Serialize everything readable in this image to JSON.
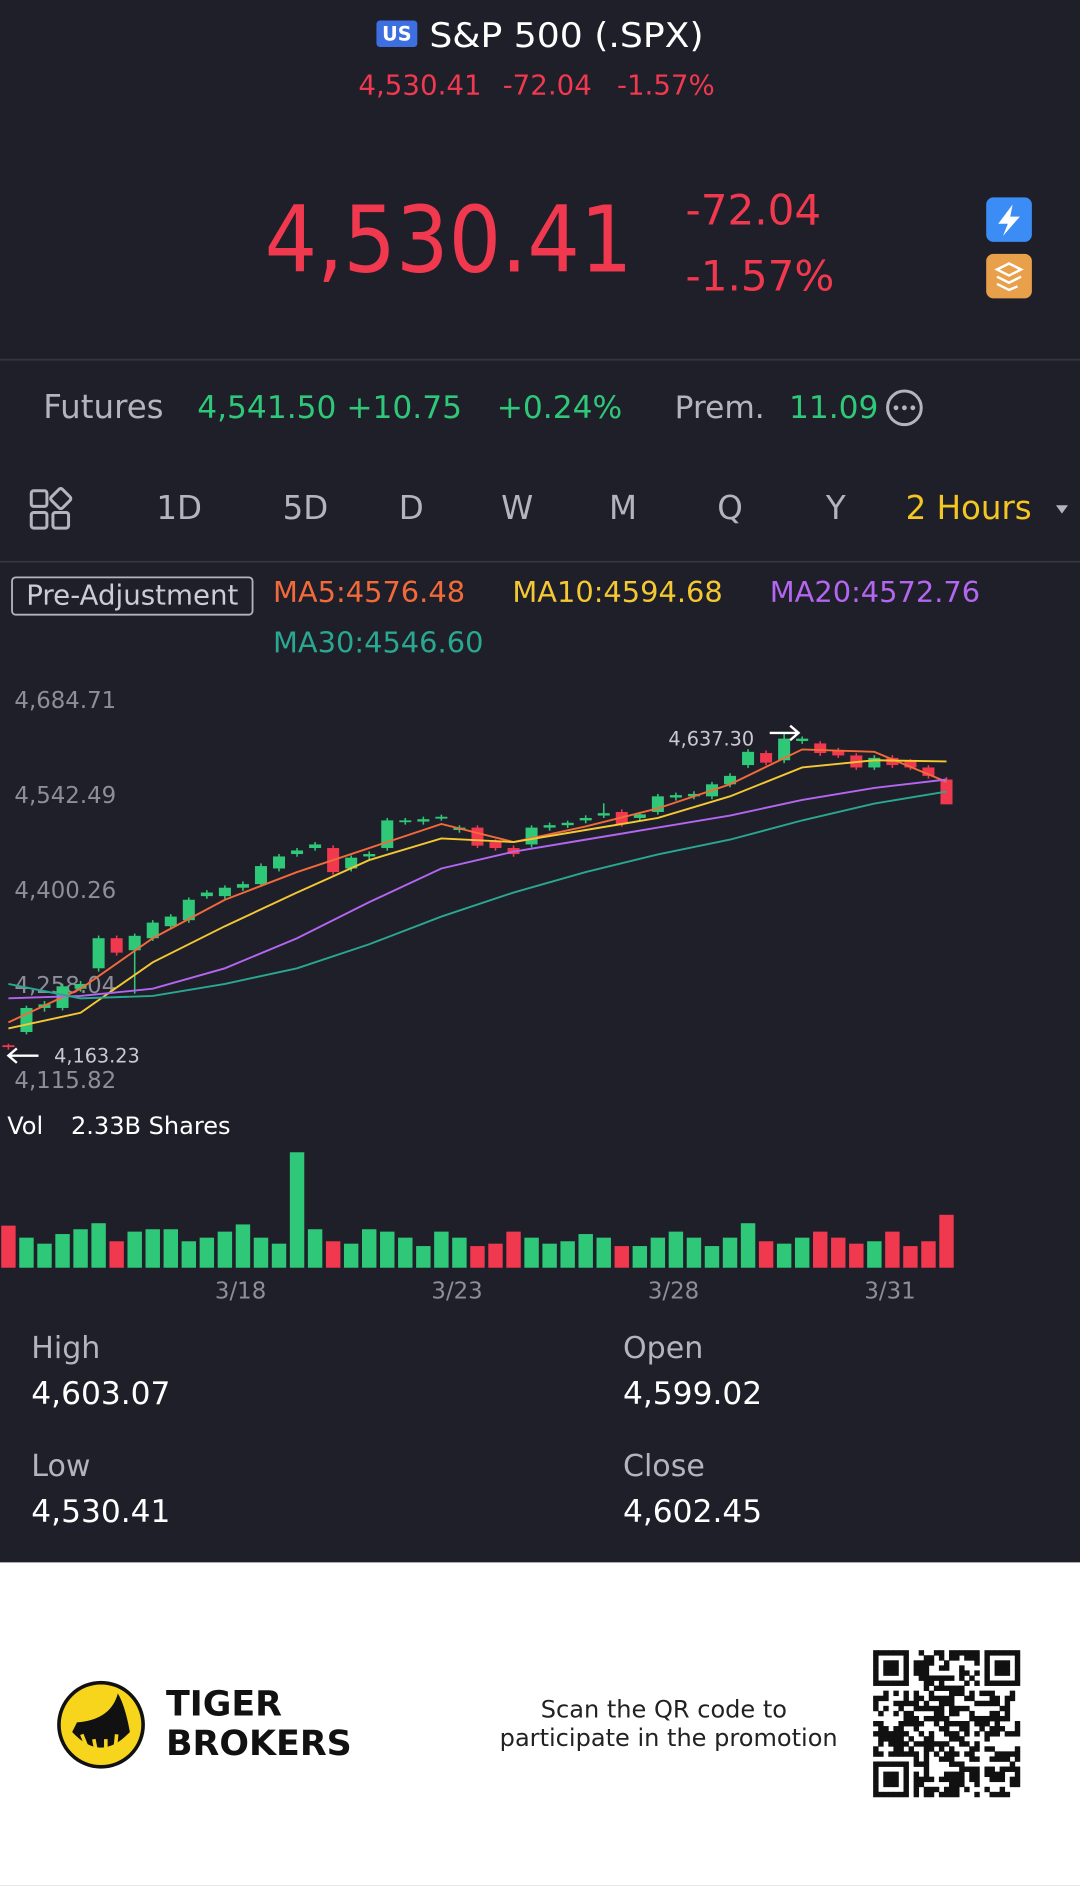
{
  "header": {
    "badge": "US",
    "title": "S&P 500 (.SPX)",
    "price": "4,530.41",
    "change": "-72.04",
    "change_pct": "-1.57%"
  },
  "quote": {
    "price": "4,530.41",
    "change": "-72.04",
    "change_pct": "-1.57%"
  },
  "futures": {
    "label": "Futures",
    "price": "4,541.50",
    "change": "+10.75",
    "change_pct": "+0.24%",
    "prem_label": "Prem.",
    "prem": "11.09"
  },
  "tabs": [
    "1D",
    "5D",
    "D",
    "W",
    "M",
    "Q",
    "Y",
    "2 Hours"
  ],
  "indicators": {
    "mode": "Pre-Adjustment",
    "ma": [
      "MA5:4576.48",
      "MA10:4594.68",
      "MA20:4572.76",
      "MA30:4546.60"
    ]
  },
  "chart_data": {
    "type": "candlestick",
    "up_color": "#2fc879",
    "down_color": "#f0384e",
    "open": [
      4169.8,
      4189.6,
      4225.6,
      4225.6,
      4254.4,
      4285.0,
      4330.0,
      4312.0,
      4330.0,
      4348.0,
      4357.0,
      4393.0,
      4393.0,
      4405.6,
      4411.0,
      4434.4,
      4456.0,
      4465.0,
      4465.0,
      4434.4,
      4452.4,
      4465.0,
      4504.6,
      4504.6,
      4510.0,
      4492.0,
      4495.6,
      4474.0,
      4465.0,
      4470.4,
      4495.6,
      4499.2,
      4506.4,
      4513.6,
      4519.0,
      4510.0,
      4519.0,
      4540.6,
      4542.4,
      4542.4,
      4560.4,
      4589.2,
      4607.2,
      4596.4,
      4625.2,
      4621.6,
      4611.0,
      4603.6,
      4585.6,
      4600.0,
      4594.6,
      4585.6,
      4567.6
    ],
    "high": [
      4172,
      4229,
      4236,
      4262,
      4266,
      4334,
      4334,
      4337,
      4357,
      4366,
      4391,
      4402,
      4409,
      4415,
      4442,
      4456,
      4465,
      4474,
      4469,
      4454,
      4460,
      4510,
      4510,
      4512,
      4515,
      4499,
      4499,
      4478,
      4469,
      4499,
      4503,
      4506,
      4514,
      4532,
      4523,
      4519,
      4546,
      4548,
      4550,
      4564,
      4577,
      4613,
      4611,
      4637.3,
      4632,
      4625,
      4615,
      4607,
      4604,
      4604,
      4598,
      4589,
      4571
    ],
    "low": [
      4163.23,
      4186,
      4220,
      4222,
      4250,
      4280,
      4304,
      4247,
      4326,
      4344,
      4353,
      4389,
      4389,
      4401,
      4407,
      4430,
      4452,
      4461,
      4425,
      4430,
      4448,
      4461,
      4500,
      4500,
      4506,
      4488,
      4465,
      4461,
      4452,
      4466,
      4491,
      4495,
      4502,
      4510,
      4497,
      4506,
      4515,
      4536,
      4538,
      4538,
      4556,
      4585,
      4589,
      4592,
      4621,
      4603,
      4600,
      4582,
      4582,
      4585,
      4582,
      4569,
      4530.41
    ],
    "close": [
      4168.0,
      4225.6,
      4231.0,
      4258.0,
      4261.6,
      4330.0,
      4308.4,
      4333.6,
      4353.4,
      4362.4,
      4387.6,
      4398.4,
      4405.6,
      4411.0,
      4438.0,
      4452.4,
      4461.4,
      4470.4,
      4429.0,
      4450.6,
      4456.0,
      4506.4,
      4506.4,
      4508.2,
      4511.8,
      4495.6,
      4468.6,
      4465.0,
      4456.0,
      4495.6,
      4499.2,
      4502.8,
      4510.0,
      4517.2,
      4501.0,
      4515.4,
      4542.4,
      4544.2,
      4546.0,
      4560.4,
      4573.0,
      4609.0,
      4592.8,
      4628.8,
      4628.8,
      4607.2,
      4603.6,
      4585.6,
      4600.0,
      4589.2,
      4585.6,
      4573.0,
      4530.41
    ],
    "ylim": [
      4115.82,
      4684.71
    ],
    "yticks": [
      {
        "value": 4684.71,
        "label": "4,684.71"
      },
      {
        "value": 4542.49,
        "label": "4,542.49"
      },
      {
        "value": 4400.26,
        "label": "4,400.26"
      },
      {
        "value": 4258.04,
        "label": "4,258.04"
      },
      {
        "value": 4115.82,
        "label": "4,115.82"
      }
    ],
    "grid": false,
    "xticks": [
      {
        "value": 12.87,
        "label": "3/18"
      },
      {
        "value": 24.87,
        "label": "3/23"
      },
      {
        "value": 36.87,
        "label": "3/28"
      },
      {
        "value": 48.87,
        "label": "3/31"
      }
    ],
    "annotations": [
      {
        "index": 43,
        "value": 4637.3,
        "label": "4,637.30",
        "side": "right"
      },
      {
        "index": 0,
        "value": 4163.23,
        "label": "4,163.23",
        "side": "left"
      }
    ],
    "series": [
      {
        "color": "#f36a3a",
        "x": [
          0,
          4,
          8,
          12,
          16,
          20,
          24,
          28,
          32,
          36,
          40,
          44,
          48,
          52
        ],
        "values": [
          4204.0,
          4254.4,
          4330.0,
          4387.6,
          4429.0,
          4465.0,
          4501.0,
          4474.0,
          4497.4,
          4524.4,
          4560.4,
          4612.6,
          4609.0,
          4564.0
        ]
      },
      {
        "color": "#f4c832",
        "x": [
          0,
          4,
          8,
          12,
          16,
          20,
          24,
          28,
          32,
          36,
          40,
          44,
          48,
          52
        ],
        "values": [
          4195.0,
          4218.4,
          4294.0,
          4348.0,
          4398.4,
          4447.0,
          4479.4,
          4474.0,
          4492.0,
          4510.0,
          4542.4,
          4585.6,
          4596.4,
          4594.6
        ]
      },
      {
        "color": "#b466f0",
        "x": [
          0,
          4,
          8,
          12,
          16,
          20,
          24,
          28,
          32,
          36,
          40,
          44,
          48,
          52
        ],
        "values": [
          4240.0,
          4243.6,
          4254.4,
          4285.0,
          4330.0,
          4384.0,
          4434.4,
          4459.6,
          4477.6,
          4495.6,
          4513.6,
          4537.0,
          4555.0,
          4567.6
        ]
      },
      {
        "color": "#2aa791",
        "x": [
          0,
          4,
          8,
          12,
          16,
          20,
          24,
          28,
          32,
          36,
          40,
          44,
          48,
          52
        ],
        "values": [
          4261.6,
          4240.0,
          4243.6,
          4261.6,
          4285.0,
          4321.0,
          4362.4,
          4398.4,
          4429.0,
          4455.4,
          4477.6,
          4506.4,
          4531.6,
          4549.6
        ]
      }
    ],
    "volume": {
      "label": "Vol",
      "text": "2.33B Shares",
      "ylim": [
        0,
        1
      ],
      "values": [
        0.35,
        0.25,
        0.2,
        0.28,
        0.32,
        0.37,
        0.22,
        0.3,
        0.32,
        0.32,
        0.22,
        0.25,
        0.3,
        0.36,
        0.25,
        0.2,
        0.96,
        0.32,
        0.22,
        0.2,
        0.32,
        0.3,
        0.25,
        0.18,
        0.3,
        0.25,
        0.18,
        0.2,
        0.3,
        0.25,
        0.2,
        0.22,
        0.28,
        0.25,
        0.18,
        0.18,
        0.25,
        0.3,
        0.25,
        0.18,
        0.25,
        0.37,
        0.22,
        0.2,
        0.25,
        0.3,
        0.25,
        0.2,
        0.22,
        0.3,
        0.18,
        0.22,
        0.44
      ]
    }
  },
  "stats": [
    {
      "label": "High",
      "value": "4,603.07"
    },
    {
      "label": "Open",
      "value": "4,599.02"
    },
    {
      "label": "Low",
      "value": "4,530.41"
    },
    {
      "label": "Close",
      "value": "4,602.45"
    }
  ],
  "footer": {
    "brand_line1": "TIGER",
    "brand_line2": "BROKERS",
    "promo_line1": "Scan the QR code to",
    "promo_line2": "participate in the promotion"
  }
}
